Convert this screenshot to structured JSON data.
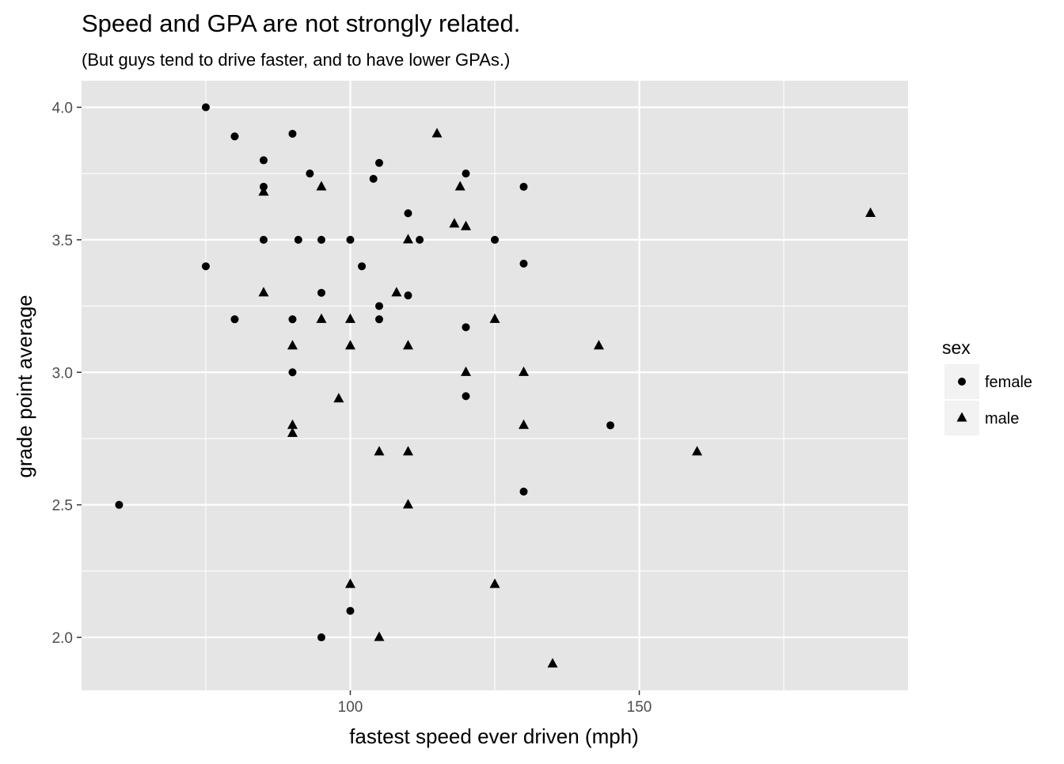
{
  "chart_data": {
    "type": "scatter",
    "title": "Speed and GPA are not strongly related.",
    "subtitle": "(But guys tend to drive faster, and to have lower GPAs.)",
    "xlabel": "fastest speed ever driven (mph)",
    "ylabel": "grade point average",
    "xlim": [
      53.5,
      196.5
    ],
    "ylim": [
      1.8,
      4.1
    ],
    "x_ticks": [
      100,
      150
    ],
    "x_tick_labels": [
      "100",
      "150"
    ],
    "y_ticks": [
      2.0,
      2.5,
      3.0,
      3.5,
      4.0
    ],
    "y_tick_labels": [
      "2.0",
      "2.5",
      "3.0",
      "3.5",
      "4.0"
    ],
    "grid": true,
    "legend": {
      "title": "sex",
      "position": "right",
      "entries": [
        {
          "label": "female",
          "shape": "circle"
        },
        {
          "label": "male",
          "shape": "triangle"
        }
      ]
    },
    "colors": {
      "panel": "#e5e5e5",
      "grid": "#ffffff",
      "point": "#000000",
      "tick_text": "#4d4d4d",
      "text": "#000000"
    },
    "series": [
      {
        "name": "female",
        "shape": "circle",
        "points": [
          [
            75,
            4.0
          ],
          [
            80,
            3.89
          ],
          [
            90,
            3.9
          ],
          [
            85,
            3.8
          ],
          [
            93,
            3.75
          ],
          [
            105,
            3.79
          ],
          [
            104,
            3.73
          ],
          [
            120,
            3.75
          ],
          [
            85,
            3.7
          ],
          [
            130,
            3.7
          ],
          [
            110,
            3.6
          ],
          [
            85,
            3.5
          ],
          [
            91,
            3.5
          ],
          [
            95,
            3.5
          ],
          [
            100,
            3.5
          ],
          [
            112,
            3.5
          ],
          [
            125,
            3.5
          ],
          [
            130,
            3.41
          ],
          [
            75,
            3.4
          ],
          [
            102,
            3.4
          ],
          [
            95,
            3.3
          ],
          [
            110,
            3.29
          ],
          [
            105,
            3.25
          ],
          [
            80,
            3.2
          ],
          [
            90,
            3.2
          ],
          [
            105,
            3.2
          ],
          [
            120,
            3.17
          ],
          [
            90,
            3.0
          ],
          [
            120,
            2.91
          ],
          [
            145,
            2.8
          ],
          [
            130,
            2.55
          ],
          [
            60,
            2.5
          ],
          [
            100,
            2.1
          ],
          [
            95,
            2.0
          ]
        ]
      },
      {
        "name": "male",
        "shape": "triangle",
        "points": [
          [
            115,
            3.9
          ],
          [
            95,
            3.7
          ],
          [
            119,
            3.7
          ],
          [
            85,
            3.68
          ],
          [
            118,
            3.56
          ],
          [
            120,
            3.55
          ],
          [
            110,
            3.5
          ],
          [
            190,
            3.6
          ],
          [
            85,
            3.3
          ],
          [
            108,
            3.3
          ],
          [
            95,
            3.2
          ],
          [
            100,
            3.2
          ],
          [
            125,
            3.2
          ],
          [
            90,
            3.1
          ],
          [
            100,
            3.1
          ],
          [
            110,
            3.1
          ],
          [
            143,
            3.1
          ],
          [
            120,
            3.0
          ],
          [
            130,
            3.0
          ],
          [
            98,
            2.9
          ],
          [
            90,
            2.8
          ],
          [
            90,
            2.77
          ],
          [
            130,
            2.8
          ],
          [
            105,
            2.7
          ],
          [
            110,
            2.7
          ],
          [
            160,
            2.7
          ],
          [
            110,
            2.5
          ],
          [
            100,
            2.2
          ],
          [
            125,
            2.2
          ],
          [
            105,
            2.0
          ],
          [
            135,
            1.9
          ]
        ]
      }
    ]
  }
}
